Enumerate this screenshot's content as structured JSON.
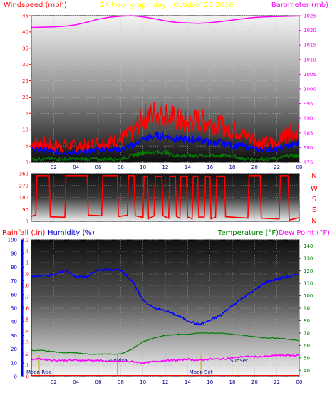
{
  "header": {
    "left_label": "Windspeed (mph)",
    "title": "24 hour graph day : October 23 2016",
    "right_label": "Barometer (mb)"
  },
  "colors": {
    "wind": "#ff0000",
    "avg_wind": "#0000ff",
    "wind_low": "#008000",
    "barometer": "#ff00ff",
    "direction": "#ff0000",
    "humidity": "#0000ff",
    "temperature": "#008000",
    "dewpoint": "#ff00ff",
    "rain": "#ff0000",
    "left_axis": "#ff0000",
    "right_axis": "#ff00ff",
    "x_axis": "#000080",
    "title": "#ffff00"
  },
  "x_ticks": [
    "02",
    "04",
    "06",
    "08",
    "10",
    "12",
    "14",
    "16",
    "18",
    "20",
    "22",
    "00"
  ],
  "direction_labels": [
    "N",
    "W",
    "S",
    "E",
    "N"
  ],
  "bottom_labels": {
    "rain": "Rainfall (.in)",
    "humidity": "Humidity (%)",
    "temperature": "Temperature (°F)",
    "dewpoint": "Dew Point (°F)"
  },
  "events": {
    "moon_rise": "Moon Rise",
    "sunrise": "SunRise",
    "moon_set": "Moon Set",
    "sunset": "SunSet"
  },
  "chart_data": [
    {
      "type": "line",
      "title": "24 hour graph day : October 23 2016",
      "ylabel": "Windspeed (mph)",
      "y2label": "Barometer (mb)",
      "ylim": [
        0,
        45
      ],
      "y2lim": [
        975,
        1025
      ],
      "yticks": [
        0,
        5,
        10,
        15,
        20,
        25,
        30,
        35,
        40,
        45
      ],
      "y2ticks": [
        975,
        980,
        985,
        990,
        995,
        1000,
        1005,
        1010,
        1015,
        1020,
        1025
      ],
      "x": [
        0,
        1,
        2,
        3,
        4,
        5,
        6,
        7,
        8,
        9,
        10,
        11,
        12,
        13,
        14,
        15,
        16,
        17,
        18,
        19,
        20,
        21,
        22,
        23,
        24
      ],
      "series": [
        {
          "name": "Windspeed (mph)",
          "axis": "left",
          "values": [
            6,
            6,
            5,
            5,
            5,
            5,
            6,
            6,
            7,
            9,
            14,
            15,
            15,
            13,
            12,
            13,
            12,
            11,
            10,
            9,
            7,
            6,
            6,
            9,
            10
          ]
        },
        {
          "axis": "left",
          "values": [
            4,
            4,
            3,
            3,
            3,
            3,
            4,
            4,
            4,
            5,
            7,
            8,
            8,
            7,
            7,
            7,
            6,
            6,
            5,
            5,
            4,
            4,
            4,
            5,
            6
          ]
        },
        {
          "axis": "left",
          "values": [
            1,
            1,
            1,
            1,
            1,
            1,
            1,
            1,
            1,
            2,
            3,
            3,
            3,
            2,
            2,
            2,
            2,
            2,
            2,
            1,
            1,
            1,
            1,
            2,
            2
          ]
        },
        {
          "name": "Barometer (mb)",
          "axis": "right",
          "values": [
            1021.0,
            1021.1,
            1021.2,
            1021.4,
            1021.9,
            1022.8,
            1023.8,
            1024.5,
            1024.8,
            1025.0,
            1024.6,
            1024.0,
            1023.2,
            1022.7,
            1022.5,
            1022.4,
            1022.6,
            1023.0,
            1023.5,
            1024.0,
            1024.4,
            1024.6,
            1024.7,
            1024.8,
            1024.9
          ]
        }
      ]
    },
    {
      "type": "line",
      "ylim": [
        0,
        360
      ],
      "yticks": [
        0,
        90,
        180,
        270,
        360
      ],
      "x": [
        0,
        0.4,
        0.5,
        1.6,
        1.7,
        3.0,
        3.1,
        5.0,
        5.1,
        6.3,
        6.4,
        7.7,
        7.8,
        8.6,
        8.7,
        9.2,
        9.3,
        10.0,
        10.1,
        10.4,
        10.5,
        11.0,
        11.1,
        11.7,
        11.8,
        12.3,
        12.4,
        12.9,
        13.0,
        13.3,
        13.4,
        13.9,
        14.0,
        14.4,
        14.5,
        14.9,
        15.0,
        15.5,
        15.6,
        16.0,
        16.1,
        16.5,
        16.6,
        17.3,
        17.4,
        19.4,
        19.5,
        20.5,
        20.6,
        22.2,
        22.3,
        23.0,
        23.1,
        24
      ],
      "values": [
        40,
        40,
        345,
        345,
        40,
        40,
        345,
        345,
        40,
        40,
        345,
        345,
        40,
        40,
        345,
        345,
        30,
        30,
        340,
        340,
        30,
        30,
        340,
        340,
        30,
        30,
        340,
        340,
        30,
        30,
        340,
        340,
        30,
        30,
        340,
        340,
        30,
        30,
        340,
        340,
        30,
        30,
        340,
        340,
        30,
        30,
        345,
        345,
        25,
        25,
        345,
        345,
        20,
        20
      ]
    },
    {
      "type": "line",
      "xlabel": "",
      "ylabel": "Rainfall (.in)",
      "y2label": "Humidity (%)",
      "y3label": "Temperature (°F) / Dew Point (°F)",
      "rain_ticks": [
        0,
        0.1,
        0.2,
        0.3,
        0.4,
        0.5,
        0.6,
        0.7,
        0.8,
        0.9,
        1,
        1.1,
        1.2
      ],
      "humidity_ticks": [
        0,
        10,
        20,
        30,
        40,
        50,
        60,
        70,
        80,
        90,
        100
      ],
      "temp_ticks": [
        40,
        50,
        60,
        70,
        80,
        90,
        100,
        110,
        120,
        130,
        140
      ],
      "ylim_rain": [
        0,
        1.2
      ],
      "ylim_humidity": [
        0,
        100
      ],
      "ylim_temp": [
        35,
        145
      ],
      "x": [
        0,
        1,
        2,
        3,
        4,
        5,
        6,
        7,
        8,
        9,
        10,
        11,
        12,
        13,
        14,
        15,
        16,
        17,
        18,
        19,
        20,
        21,
        22,
        23,
        24
      ],
      "series": [
        {
          "name": "Humidity (%)",
          "axis": "humidity",
          "values": [
            73,
            74,
            74,
            78,
            73,
            73,
            78,
            78,
            78,
            70,
            56,
            50,
            48,
            45,
            41,
            38,
            41,
            45,
            52,
            58,
            63,
            69,
            71,
            73,
            75
          ]
        },
        {
          "name": "Temperature (°F)",
          "axis": "temperature",
          "values": [
            56,
            56,
            55,
            54,
            54,
            53,
            53,
            53,
            53,
            57,
            63,
            66,
            68,
            69,
            69,
            70,
            70,
            70,
            69,
            68,
            67,
            66,
            66,
            65,
            64
          ]
        },
        {
          "name": "Dew Point (°F)",
          "axis": "temperature",
          "values": [
            49,
            49,
            48,
            48,
            48,
            48,
            48,
            47,
            47,
            47,
            46,
            47,
            48,
            48,
            49,
            48,
            49,
            49,
            50,
            51,
            51,
            51,
            52,
            52,
            52
          ]
        },
        {
          "name": "Rainfall (.in)",
          "axis": "rain",
          "values": [
            0,
            0,
            0,
            0,
            0,
            0,
            0,
            0,
            0,
            0,
            0,
            0,
            0,
            0,
            0,
            0,
            0,
            0,
            0,
            0,
            0,
            0,
            0,
            0,
            0
          ]
        }
      ],
      "events": [
        {
          "label": "Moon Rise",
          "hour": 0.7
        },
        {
          "label": "SunRise",
          "hour": 7.7
        },
        {
          "label": "Moon Set",
          "hour": 15.2
        },
        {
          "label": "SunSet",
          "hour": 18.6
        }
      ]
    }
  ]
}
